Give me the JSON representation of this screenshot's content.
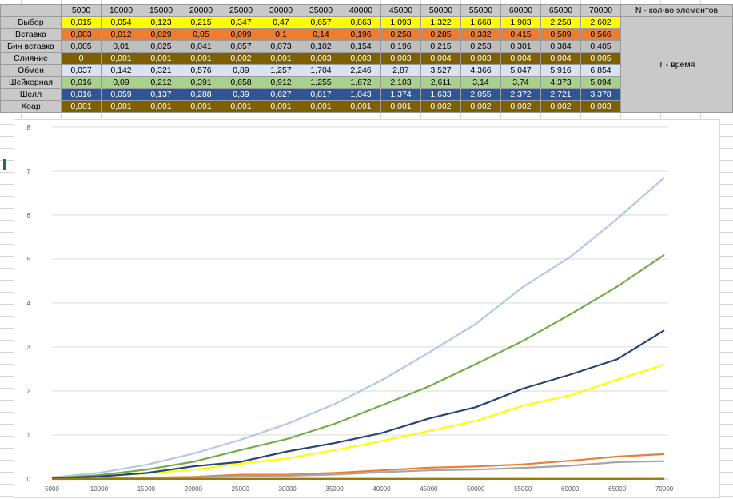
{
  "spreadsheet": {
    "header_label": "N - кол-во элементов",
    "time_label": "T - время",
    "sizes": [
      "5000",
      "10000",
      "15000",
      "20000",
      "25000",
      "30000",
      "35000",
      "40000",
      "45000",
      "50000",
      "55000",
      "60000",
      "65000",
      "70000"
    ],
    "rows": [
      {
        "name": "Выбор",
        "color": "#ffff00",
        "text": "#000000",
        "values": [
          "0,015",
          "0,054",
          "0,123",
          "0,215",
          "0,347",
          "0,47",
          "0,657",
          "0,863",
          "1,093",
          "1,322",
          "1,668",
          "1,903",
          "2,258",
          "2,602"
        ]
      },
      {
        "name": "Вставка",
        "color": "#ed7d31",
        "text": "#000000",
        "values": [
          "0,003",
          "0,012",
          "0,029",
          "0,05",
          "0,099",
          "0,1",
          "0,14",
          "0,196",
          "0,258",
          "0,285",
          "0,332",
          "0,415",
          "0,509",
          "0,566"
        ]
      },
      {
        "name": "Бин вставка",
        "color": "#bfbfbf",
        "text": "#000000",
        "values": [
          "0,005",
          "0,01",
          "0,025",
          "0,041",
          "0,057",
          "0,073",
          "0,102",
          "0,154",
          "0,196",
          "0,215",
          "0,253",
          "0,301",
          "0,384",
          "0,405"
        ]
      },
      {
        "name": "Слияние",
        "color": "#7f6000",
        "text": "#ffffff",
        "values": [
          "0",
          "0,001",
          "0,001",
          "0,001",
          "0,002",
          "0,001",
          "0,003",
          "0,003",
          "0,003",
          "0,004",
          "0,003",
          "0,004",
          "0,004",
          "0,005"
        ]
      },
      {
        "name": "Обмен",
        "color": "#dae3f3",
        "text": "#000000",
        "values": [
          "0,037",
          "0,142",
          "0,321",
          "0,576",
          "0,89",
          "1,257",
          "1,704",
          "2,246",
          "2,87",
          "3,527",
          "4,366",
          "5,047",
          "5,916",
          "6,854"
        ]
      },
      {
        "name": "Шейкерная",
        "color": "#a9d18e",
        "text": "#000000",
        "values": [
          "0,016",
          "0,09",
          "0,212",
          "0,391",
          "0,658",
          "0,912",
          "1,255",
          "1,672",
          "2,103",
          "2,611",
          "3,14",
          "3,74",
          "4,373",
          "5,094"
        ]
      },
      {
        "name": "Шелл",
        "color": "#2f5597",
        "text": "#ffffff",
        "values": [
          "0,016",
          "0,059",
          "0,137",
          "0,288",
          "0,39",
          "0,627",
          "0,817",
          "1,043",
          "1,374",
          "1,633",
          "2,055",
          "2,372",
          "2,721",
          "3,378"
        ]
      },
      {
        "name": "Хоар",
        "color": "#7f6000",
        "text": "#ffffff",
        "values": [
          "0,001",
          "0,001",
          "0,001",
          "0,001",
          "0,001",
          "0,001",
          "0,001",
          "0,001",
          "0,001",
          "0,002",
          "0,002",
          "0,002",
          "0,002",
          "0,003"
        ]
      }
    ]
  },
  "chart_data": {
    "type": "line",
    "title": "",
    "xlabel": "",
    "ylabel": "",
    "categories": [
      "5000",
      "10000",
      "15000",
      "20000",
      "25000",
      "30000",
      "35000",
      "40000",
      "45000",
      "50000",
      "55000",
      "60000",
      "65000",
      "70000"
    ],
    "y_ticks": [
      "0",
      "1",
      "2",
      "3",
      "4",
      "5",
      "6",
      "7",
      "8"
    ],
    "ylim": [
      0,
      8
    ],
    "grid": true,
    "legend": "none",
    "series": [
      {
        "name": "Выбор",
        "color": "#ffff00",
        "values": [
          0.015,
          0.054,
          0.123,
          0.215,
          0.347,
          0.47,
          0.657,
          0.863,
          1.093,
          1.322,
          1.668,
          1.903,
          2.258,
          2.602
        ]
      },
      {
        "name": "Вставка",
        "color": "#ed7d31",
        "values": [
          0.003,
          0.012,
          0.029,
          0.05,
          0.099,
          0.1,
          0.14,
          0.196,
          0.258,
          0.285,
          0.332,
          0.415,
          0.509,
          0.566
        ]
      },
      {
        "name": "Бин вставка",
        "color": "#a5a5a5",
        "values": [
          0.005,
          0.01,
          0.025,
          0.041,
          0.057,
          0.073,
          0.102,
          0.154,
          0.196,
          0.215,
          0.253,
          0.301,
          0.384,
          0.405
        ]
      },
      {
        "name": "Слияние",
        "color": "#c55a11",
        "values": [
          0,
          0.001,
          0.001,
          0.001,
          0.002,
          0.001,
          0.003,
          0.003,
          0.003,
          0.004,
          0.003,
          0.004,
          0.004,
          0.005
        ]
      },
      {
        "name": "Обмен",
        "color": "#b4c7e7",
        "values": [
          0.037,
          0.142,
          0.321,
          0.576,
          0.89,
          1.257,
          1.704,
          2.246,
          2.87,
          3.527,
          4.366,
          5.047,
          5.916,
          6.854
        ]
      },
      {
        "name": "Шейкерная",
        "color": "#70ad47",
        "values": [
          0.016,
          0.09,
          0.212,
          0.391,
          0.658,
          0.912,
          1.255,
          1.672,
          2.103,
          2.611,
          3.14,
          3.74,
          4.373,
          5.094
        ]
      },
      {
        "name": "Шелл",
        "color": "#264478",
        "values": [
          0.016,
          0.059,
          0.137,
          0.288,
          0.39,
          0.627,
          0.817,
          1.043,
          1.374,
          1.633,
          2.055,
          2.372,
          2.721,
          3.378
        ]
      },
      {
        "name": "Хоар",
        "color": "#9e7b00",
        "values": [
          0.001,
          0.001,
          0.001,
          0.001,
          0.001,
          0.001,
          0.001,
          0.001,
          0.001,
          0.002,
          0.002,
          0.002,
          0.002,
          0.003
        ]
      }
    ]
  }
}
